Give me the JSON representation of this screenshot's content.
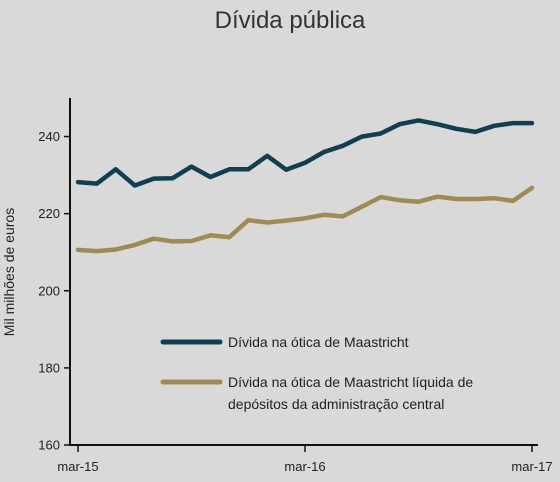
{
  "chart_data": {
    "type": "line",
    "title": "Dívida pública",
    "xlabel": "",
    "ylabel": "Mil milhões de euros",
    "ylim": [
      160,
      250
    ],
    "yticks": [
      160,
      180,
      200,
      220,
      240
    ],
    "x_tick_labels": [
      "mar-15",
      "mar-16",
      "mar-17"
    ],
    "x_tick_index": [
      0,
      12,
      24
    ],
    "x": [
      "mar-15",
      "abr-15",
      "mai-15",
      "jun-15",
      "jul-15",
      "ago-15",
      "set-15",
      "out-15",
      "nov-15",
      "dez-15",
      "jan-16",
      "fev-16",
      "mar-16",
      "abr-16",
      "mai-16",
      "jun-16",
      "jul-16",
      "ago-16",
      "set-16",
      "out-16",
      "nov-16",
      "dez-16",
      "jan-17",
      "fev-17",
      "mar-17"
    ],
    "grid": false,
    "legend_position": "lower-center",
    "series": [
      {
        "name": "Dívida na ótica de Maastricht",
        "color": "#123e52",
        "values": [
          228.2,
          227.8,
          231.5,
          227.3,
          229.1,
          229.2,
          232.2,
          229.5,
          231.5,
          231.5,
          235.0,
          231.4,
          233.2,
          236.0,
          237.6,
          240.0,
          240.8,
          243.2,
          244.2,
          243.2,
          242.0,
          241.2,
          242.8,
          243.5,
          243.5
        ]
      },
      {
        "name": "Dívida na ótica de Maastricht líquida de depósitos da administração central",
        "name_lines": [
          "Dívida na ótica de Maastricht líquida de",
          "depósitos da administração central"
        ],
        "color": "#a08a55",
        "values": [
          210.6,
          210.3,
          210.7,
          211.9,
          213.5,
          212.8,
          212.9,
          214.4,
          213.9,
          218.3,
          217.7,
          218.2,
          218.8,
          219.7,
          219.3,
          221.8,
          224.3,
          223.5,
          223.1,
          224.4,
          223.8,
          223.8,
          224.0,
          223.3,
          226.7
        ]
      }
    ]
  }
}
